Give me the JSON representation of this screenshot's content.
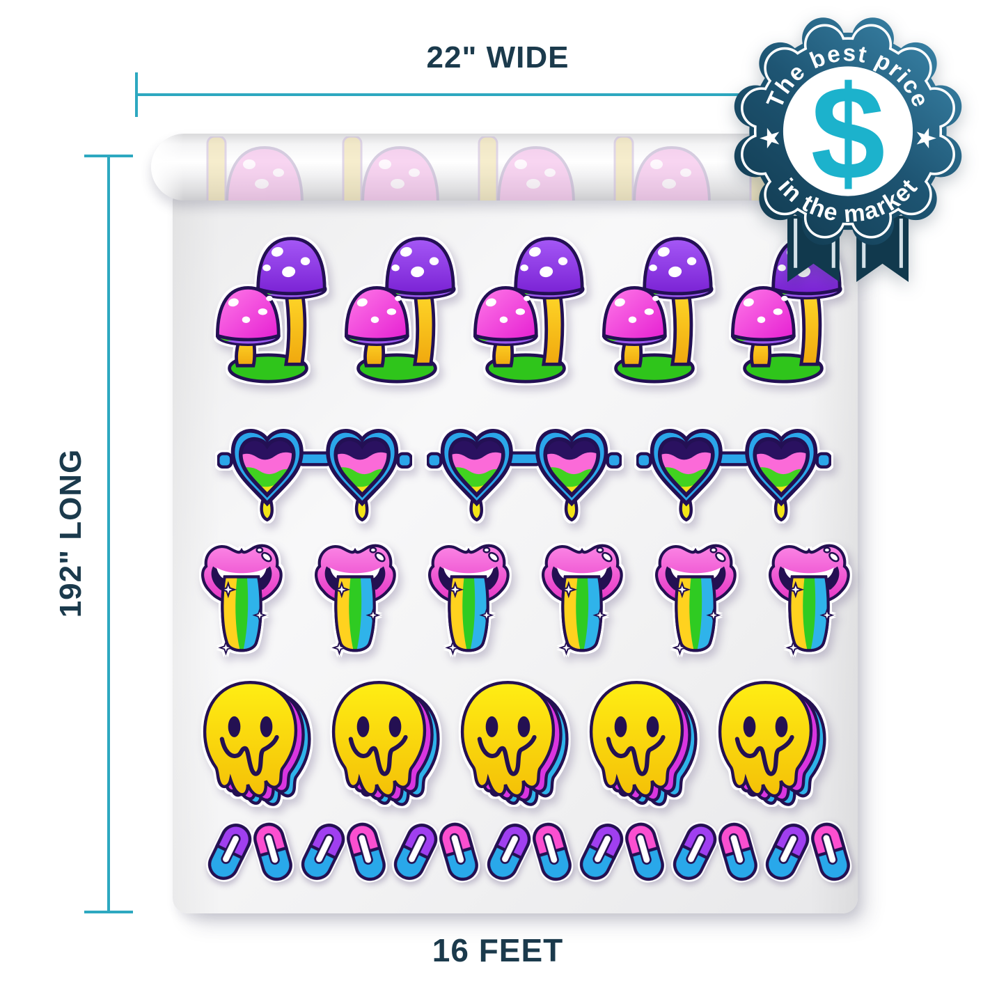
{
  "labels": {
    "width": "22\" WIDE",
    "length": "192\" LONG",
    "footage": "16 FEET"
  },
  "badge": {
    "arc_top": "The best price",
    "arc_bottom": "in the market",
    "currency_symbol": "$",
    "star": "★"
  },
  "colors": {
    "dimension_line": "#2da8c0",
    "dimension_text": "#1b3a4c",
    "badge_dark": "#123c52",
    "badge_light": "#3a84a8",
    "badge_accent": "#1cb2cc",
    "ribbon": "#11394d",
    "sticker_outline": "#241052",
    "mushroom_purple": "#8a36e0",
    "mushroom_pink": "#f04bdc",
    "stem_yellow": "#ffd21f",
    "base_green": "#2fc51b",
    "glasses_blue": "#2ba6ea",
    "smiley_yellow": "#ffe612",
    "pill_blue": "#29a8ea",
    "pill_purple": "#a03ff0",
    "pill_pink": "#fb4fd0"
  },
  "product": {
    "roll_pattern": {
      "name": "faded-mushroom-print",
      "count": 5
    },
    "sticker_rows": [
      {
        "type": "mushroom",
        "name": "psychedelic-mushrooms-sticker",
        "count": 5
      },
      {
        "type": "glasses",
        "name": "heart-sunglasses-sticker",
        "count": 3
      },
      {
        "type": "lips",
        "name": "rainbow-tongue-lips-sticker",
        "count": 6
      },
      {
        "type": "smiley",
        "name": "melting-smiley-sticker",
        "count": 5
      },
      {
        "type": "pill",
        "name": "pill-capsule-sticker",
        "count": 14
      }
    ]
  }
}
